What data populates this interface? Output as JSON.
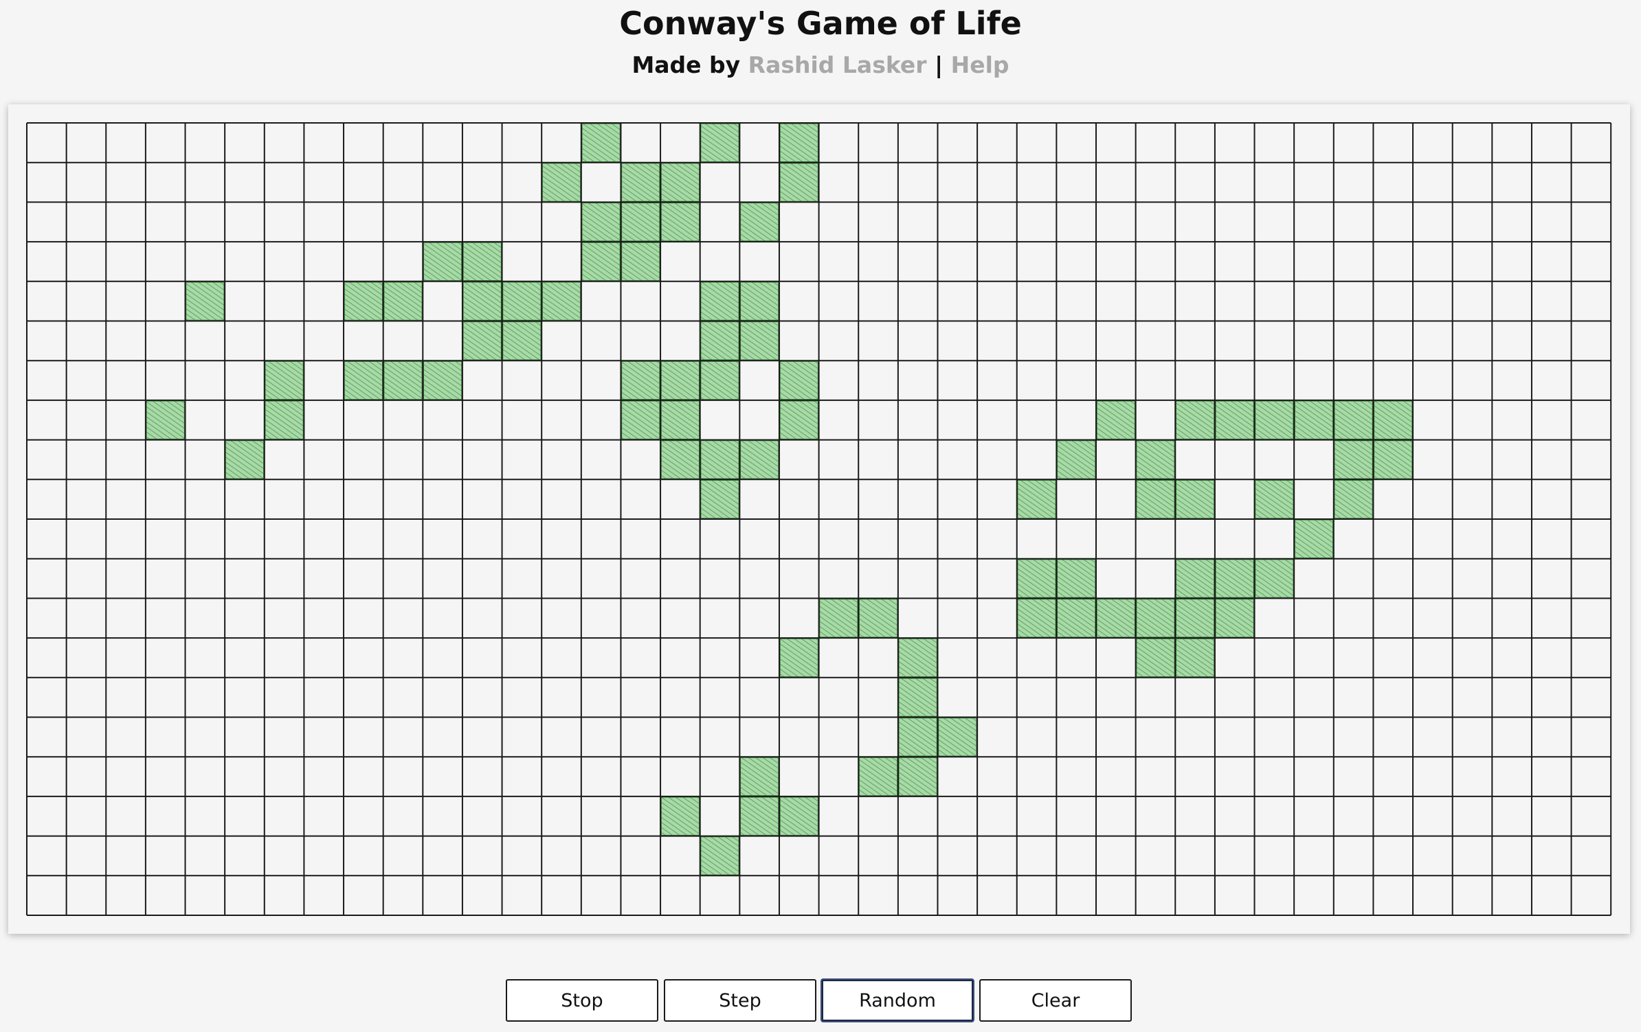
{
  "header": {
    "title": "Conway's Game of Life",
    "made_by_prefix": "Made by ",
    "author_link": "Rashid Lasker",
    "separator": " | ",
    "help_link": "Help"
  },
  "board": {
    "columns": 40,
    "rows": 20,
    "line_color": "#1a1a1a",
    "cell_fill_color": "#8fcf8f",
    "cell_stroke_color": "#3b7a3b",
    "background_color": "#f5f5f5",
    "live_cells": [
      [
        0,
        14
      ],
      [
        0,
        17
      ],
      [
        0,
        19
      ],
      [
        1,
        13
      ],
      [
        1,
        15
      ],
      [
        1,
        16
      ],
      [
        1,
        19
      ],
      [
        2,
        14
      ],
      [
        2,
        15
      ],
      [
        2,
        16
      ],
      [
        2,
        18
      ],
      [
        3,
        10
      ],
      [
        3,
        11
      ],
      [
        3,
        14
      ],
      [
        3,
        15
      ],
      [
        4,
        4
      ],
      [
        4,
        8
      ],
      [
        4,
        9
      ],
      [
        4,
        11
      ],
      [
        4,
        12
      ],
      [
        4,
        13
      ],
      [
        4,
        17
      ],
      [
        4,
        18
      ],
      [
        5,
        11
      ],
      [
        5,
        12
      ],
      [
        5,
        17
      ],
      [
        5,
        18
      ],
      [
        6,
        6
      ],
      [
        6,
        8
      ],
      [
        6,
        9
      ],
      [
        6,
        10
      ],
      [
        6,
        15
      ],
      [
        6,
        16
      ],
      [
        6,
        17
      ],
      [
        6,
        19
      ],
      [
        7,
        3
      ],
      [
        7,
        6
      ],
      [
        7,
        15
      ],
      [
        7,
        16
      ],
      [
        7,
        19
      ],
      [
        7,
        27
      ],
      [
        7,
        29
      ],
      [
        7,
        30
      ],
      [
        7,
        31
      ],
      [
        7,
        32
      ],
      [
        7,
        33
      ],
      [
        7,
        34
      ],
      [
        8,
        5
      ],
      [
        8,
        16
      ],
      [
        8,
        17
      ],
      [
        8,
        18
      ],
      [
        8,
        26
      ],
      [
        8,
        28
      ],
      [
        8,
        33
      ],
      [
        8,
        34
      ],
      [
        9,
        17
      ],
      [
        9,
        25
      ],
      [
        9,
        28
      ],
      [
        9,
        29
      ],
      [
        9,
        31
      ],
      [
        9,
        33
      ],
      [
        10,
        32
      ],
      [
        11,
        25
      ],
      [
        11,
        26
      ],
      [
        11,
        29
      ],
      [
        11,
        30
      ],
      [
        11,
        31
      ],
      [
        12,
        20
      ],
      [
        12,
        21
      ],
      [
        12,
        25
      ],
      [
        12,
        26
      ],
      [
        12,
        27
      ],
      [
        12,
        28
      ],
      [
        12,
        29
      ],
      [
        12,
        30
      ],
      [
        13,
        19
      ],
      [
        13,
        22
      ],
      [
        13,
        28
      ],
      [
        13,
        29
      ],
      [
        14,
        22
      ],
      [
        15,
        22
      ],
      [
        15,
        23
      ],
      [
        16,
        18
      ],
      [
        16,
        21
      ],
      [
        16,
        22
      ],
      [
        17,
        16
      ],
      [
        17,
        18
      ],
      [
        17,
        19
      ],
      [
        18,
        17
      ]
    ]
  },
  "controls": {
    "stop_label": "Stop",
    "step_label": "Step",
    "random_label": "Random",
    "clear_label": "Clear"
  }
}
